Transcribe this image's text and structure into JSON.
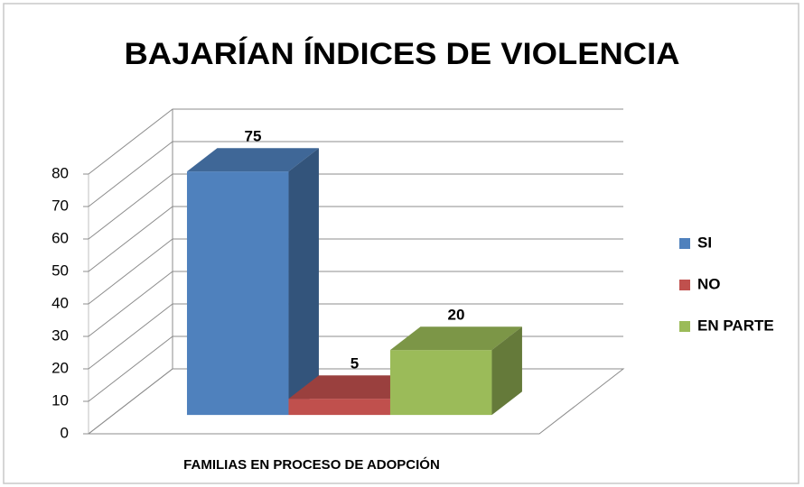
{
  "chart_data": {
    "type": "bar3d",
    "title": "BAJARÍAN ÍNDICES DE VIOLENCIA",
    "categories": [
      "FAMILIAS EN PROCESO DE ADOPCIÓN"
    ],
    "series": [
      {
        "name": "SI",
        "color": "#4f81bd",
        "values": [
          75
        ]
      },
      {
        "name": "NO",
        "color": "#c0504d",
        "values": [
          5
        ]
      },
      {
        "name": "EN PARTE",
        "color": "#9bbb59",
        "values": [
          20
        ]
      }
    ],
    "ylim": [
      0,
      80
    ],
    "yticks": [
      0,
      10,
      20,
      30,
      40,
      50,
      60,
      70,
      80
    ],
    "grid": true,
    "legend": "right",
    "data_labels": true
  }
}
